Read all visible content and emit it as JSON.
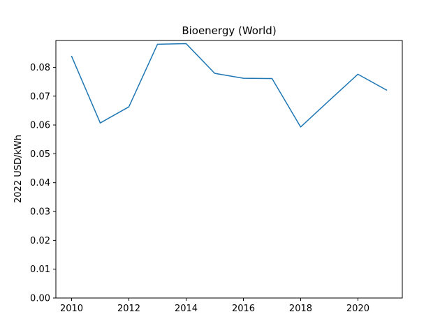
{
  "chart_data": {
    "type": "line",
    "title": "Bioenergy (World)",
    "xlabel": "",
    "ylabel": "2022 USD/kWh",
    "x": [
      2010,
      2011,
      2012,
      2013,
      2014,
      2015,
      2016,
      2017,
      2018,
      2019,
      2020,
      2021
    ],
    "series": [
      {
        "values": [
          0.0838,
          0.0607,
          0.0663,
          0.088,
          0.0882,
          0.0779,
          0.0762,
          0.0761,
          0.0593,
          0.0685,
          0.0776,
          0.0721
        ],
        "color": "#1f77b4"
      }
    ],
    "xlim": [
      2009.45,
      2021.55
    ],
    "ylim": [
      0,
      0.0893
    ],
    "xticks": [
      "2010",
      "2012",
      "2014",
      "2016",
      "2018",
      "2020"
    ],
    "yticks": [
      "0.00",
      "0.01",
      "0.02",
      "0.03",
      "0.04",
      "0.05",
      "0.06",
      "0.07",
      "0.08"
    ],
    "grid": false,
    "legend": false
  }
}
